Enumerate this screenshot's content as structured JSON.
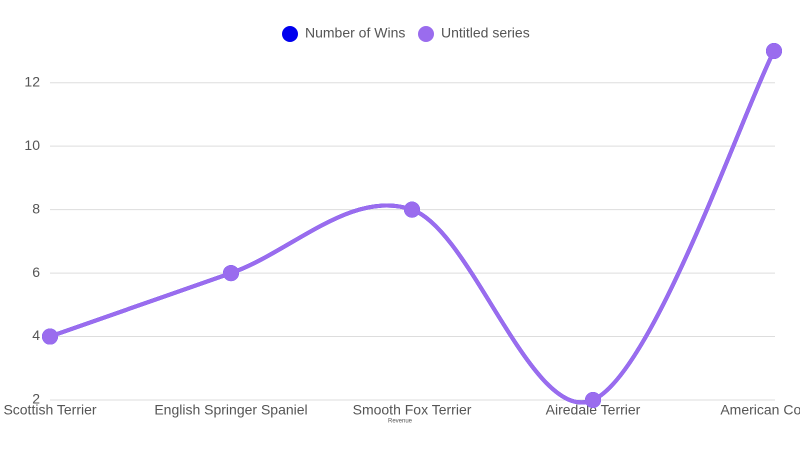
{
  "chart_data": {
    "type": "line",
    "x_label": "Revenue",
    "categories": [
      "Scottish Terrier",
      "English Springer Spaniel",
      "Smooth Fox Terrier",
      "Airedale Terrier",
      "American Cocker"
    ],
    "series": [
      {
        "name": "Number of Wins",
        "color": "#0000ee",
        "values": [
          4,
          6,
          8,
          2,
          13
        ]
      },
      {
        "name": "Untitled series",
        "color": "#9a6cee",
        "values": [
          4,
          6,
          8,
          2,
          13
        ]
      }
    ],
    "ylim": [
      2,
      13
    ],
    "yticks": [
      2,
      4,
      6,
      8,
      10,
      12
    ],
    "grid": true,
    "legend": "top",
    "smooth": true
  }
}
